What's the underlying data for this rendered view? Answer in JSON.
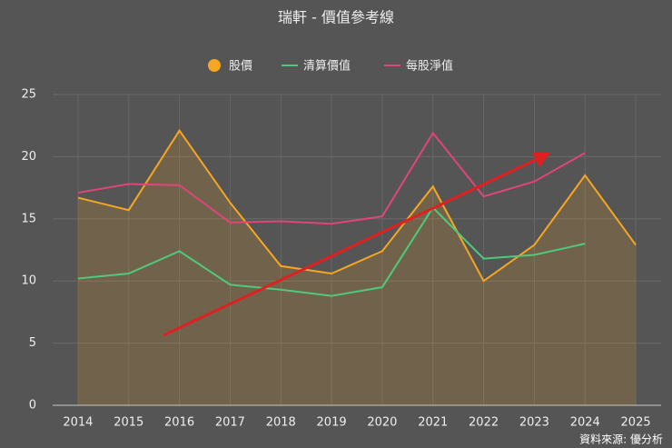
{
  "chart_data": {
    "type": "line",
    "title": "瑞軒 - 價值參考線",
    "categories": [
      "2014",
      "2015",
      "2016",
      "2017",
      "2018",
      "2019",
      "2020",
      "2021",
      "2022",
      "2023",
      "2024",
      "2025"
    ],
    "series": [
      {
        "name": "股價",
        "color": "#f5a623",
        "area": true,
        "values": [
          16.7,
          15.7,
          22.1,
          16.3,
          11.2,
          10.6,
          12.4,
          17.6,
          10.0,
          12.9,
          18.5,
          12.9
        ]
      },
      {
        "name": "清算價值",
        "color": "#4fc97a",
        "values": [
          10.2,
          10.6,
          12.4,
          9.7,
          9.3,
          8.8,
          9.5,
          15.9,
          11.8,
          12.1,
          13.0,
          null
        ]
      },
      {
        "name": "每股淨值",
        "color": "#e0457a",
        "values": [
          17.1,
          17.8,
          17.7,
          14.7,
          14.8,
          14.6,
          15.2,
          21.9,
          16.8,
          18.0,
          20.3,
          null
        ]
      }
    ],
    "ylim": [
      0,
      25
    ],
    "yticks": [
      0,
      5,
      10,
      15,
      20,
      25
    ],
    "grid": true,
    "source": "資料來源: 優分析"
  }
}
